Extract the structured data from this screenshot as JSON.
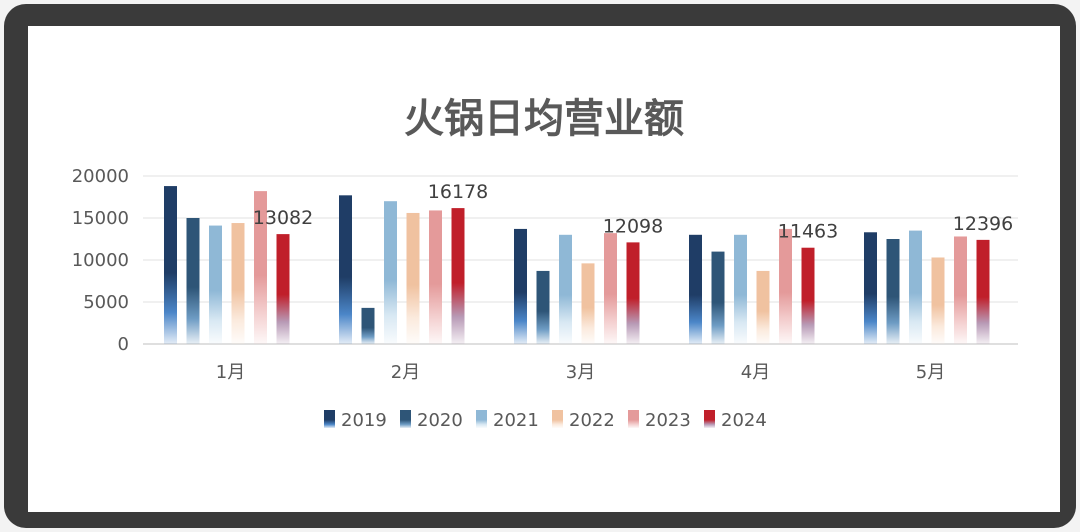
{
  "chart_data": {
    "type": "bar",
    "title": "火锅日均营业额",
    "categories": [
      "1月",
      "2月",
      "3月",
      "4月",
      "5月"
    ],
    "ylim": [
      0,
      20000
    ],
    "yticks": [
      0,
      5000,
      10000,
      15000,
      20000
    ],
    "grid": true,
    "legend_position": "bottom",
    "series": [
      {
        "name": "2019",
        "values": [
          18800,
          17700,
          13700,
          13000,
          13300
        ],
        "color": "#1f3d66",
        "fade": "#4b86c8"
      },
      {
        "name": "2020",
        "values": [
          15000,
          4300,
          8700,
          11000,
          12500
        ],
        "color": "#2e5577",
        "fade": "#6e9cc4"
      },
      {
        "name": "2021",
        "values": [
          14100,
          17000,
          13000,
          13000,
          13500
        ],
        "color": "#8fb8d6",
        "fade": "#d8e8f3"
      },
      {
        "name": "2022",
        "values": [
          14400,
          15600,
          9600,
          8700,
          10300
        ],
        "color": "#f0c2a0",
        "fade": "#fbeadd"
      },
      {
        "name": "2023",
        "values": [
          18200,
          15900,
          13200,
          13700,
          12800
        ],
        "color": "#e49a9a",
        "fade": "#f4d0d0"
      },
      {
        "name": "2024",
        "values": [
          13082,
          16178,
          12098,
          11463,
          12396
        ],
        "color": "#c01f2a",
        "fade": "#b89ab6"
      }
    ],
    "data_labels": {
      "series": "2024",
      "values": [
        "13082",
        "16178",
        "12098",
        "11463",
        "12396"
      ]
    }
  }
}
